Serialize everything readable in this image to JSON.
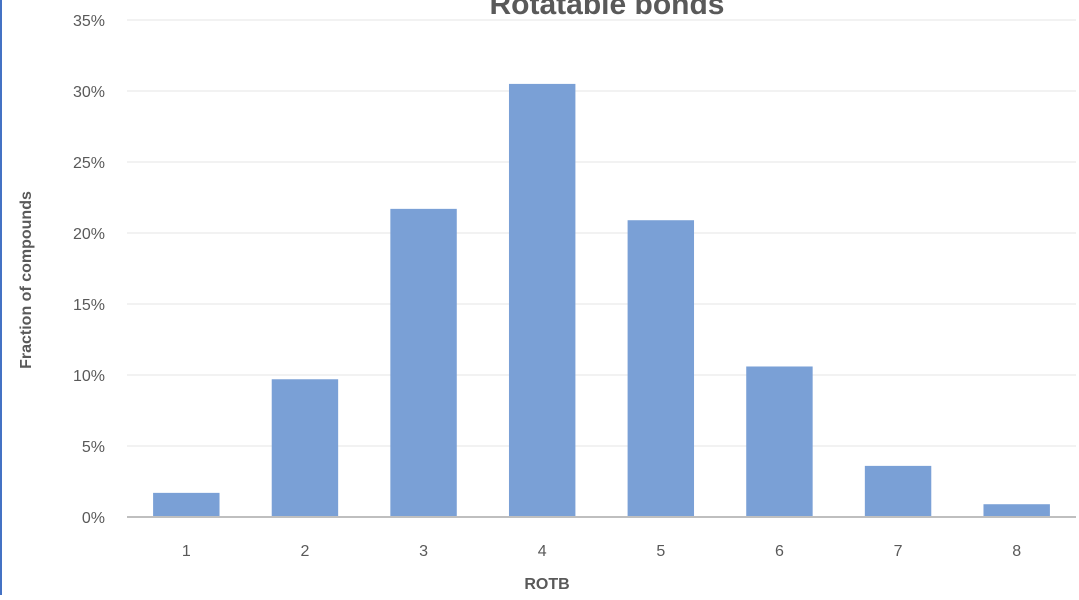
{
  "chart_data": {
    "type": "bar",
    "title": "Rotatable bonds",
    "xlabel": "ROTB",
    "ylabel": "Fraction of compounds",
    "categories": [
      "1",
      "2",
      "3",
      "4",
      "5",
      "6",
      "7",
      "8"
    ],
    "values": [
      0.017,
      0.097,
      0.217,
      0.305,
      0.209,
      0.106,
      0.036,
      0.009
    ],
    "ylim": [
      0,
      0.35
    ],
    "yticks": [
      {
        "value": 0,
        "label": "0%"
      },
      {
        "value": 0.05,
        "label": "5%"
      },
      {
        "value": 0.1,
        "label": "10%"
      },
      {
        "value": 0.15,
        "label": "15%"
      },
      {
        "value": 0.2,
        "label": "20%"
      },
      {
        "value": 0.25,
        "label": "25%"
      },
      {
        "value": 0.3,
        "label": "30%"
      },
      {
        "value": 0.35,
        "label": "35%"
      }
    ],
    "grid": true,
    "legend": "none",
    "bar_color": "#7aa0d6"
  }
}
